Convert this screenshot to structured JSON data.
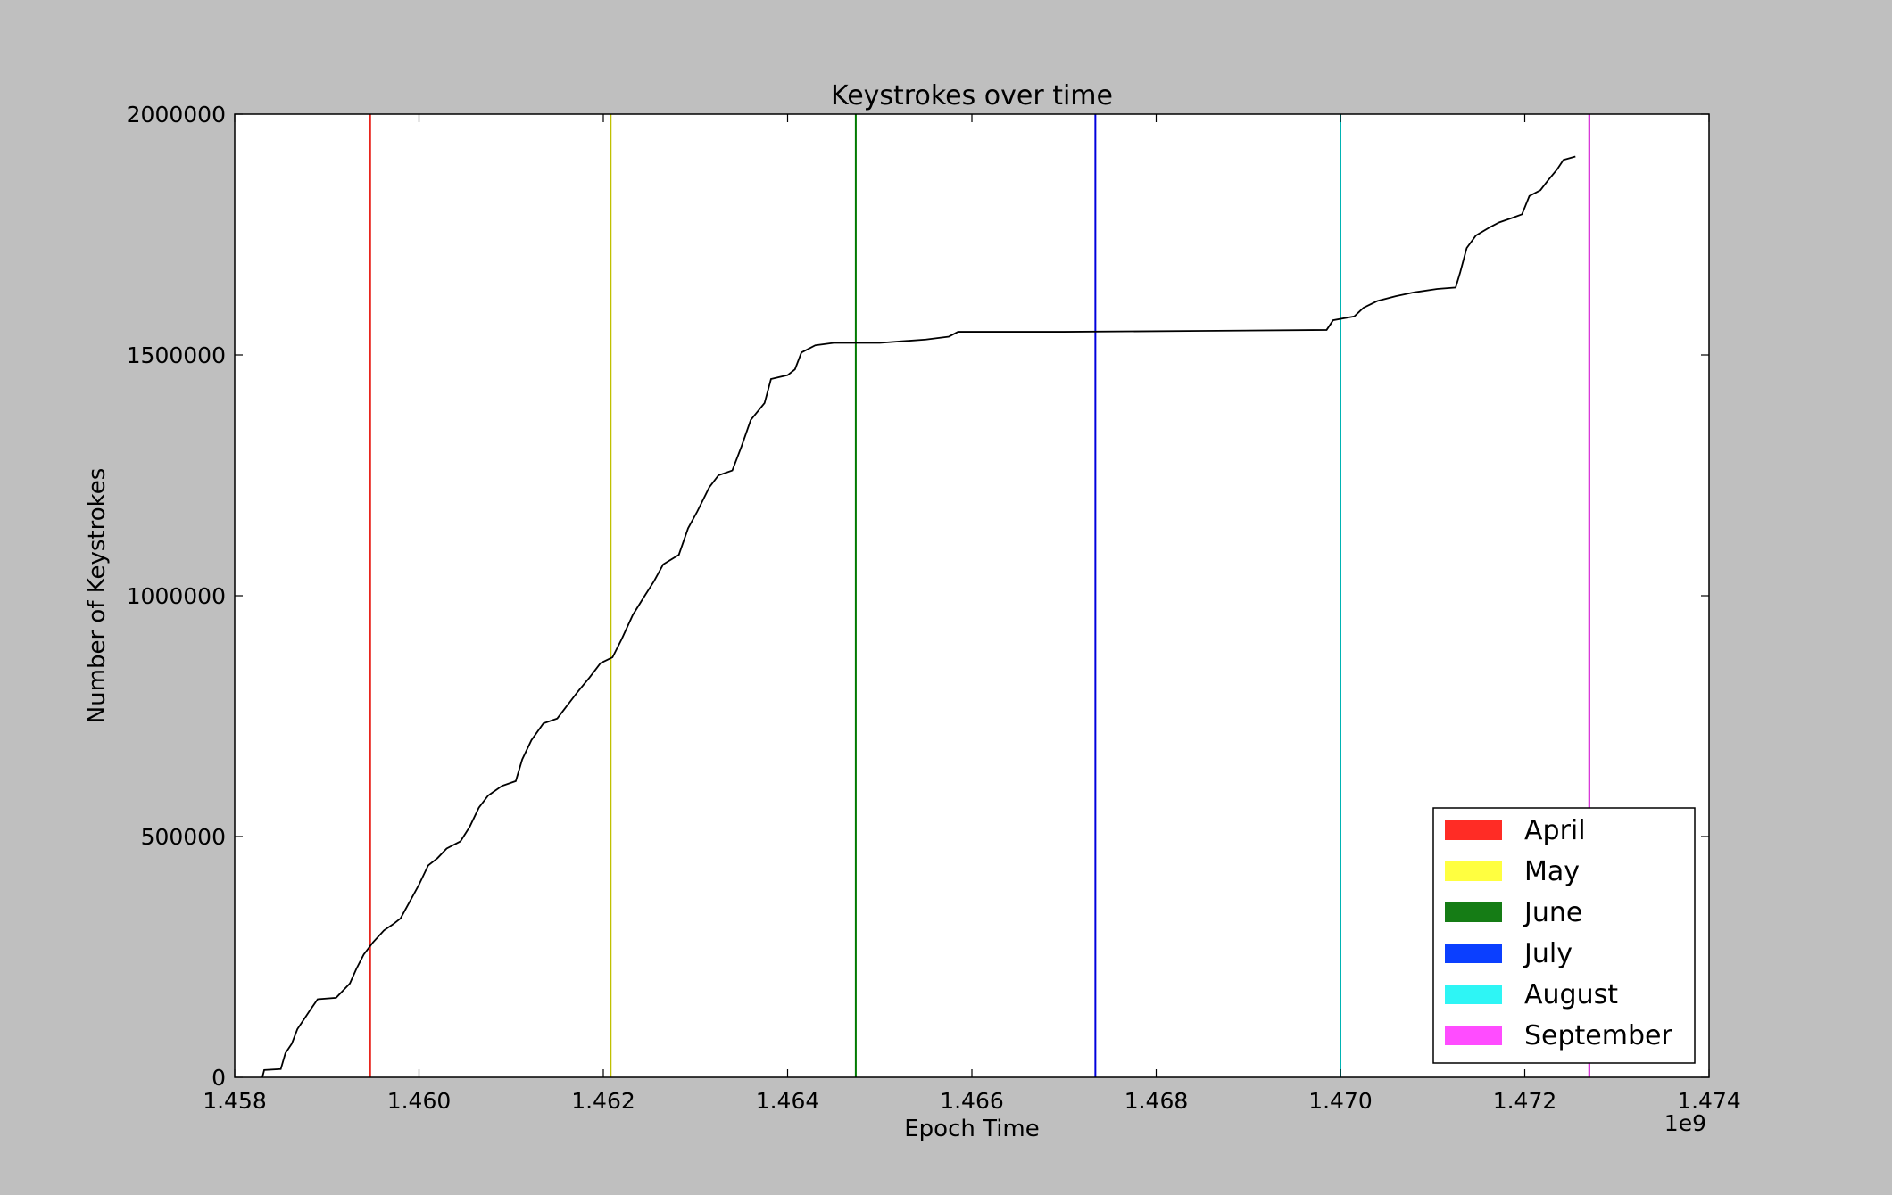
{
  "chart_data": {
    "type": "line",
    "title": "Keystrokes over time",
    "xlabel": "Epoch Time",
    "ylabel": "Number of Keystrokes",
    "x_offset_label": "1e9",
    "xlim": [
      1.458,
      1.474
    ],
    "ylim": [
      0,
      2000000
    ],
    "x_ticks": [
      1.458,
      1.46,
      1.462,
      1.464,
      1.466,
      1.468,
      1.47,
      1.472,
      1.474
    ],
    "x_tick_labels": [
      "1.458",
      "1.460",
      "1.462",
      "1.464",
      "1.466",
      "1.468",
      "1.470",
      "1.472",
      "1.474"
    ],
    "y_ticks": [
      0,
      500000,
      1000000,
      1500000,
      2000000
    ],
    "y_tick_labels": [
      "0",
      "500000",
      "1000000",
      "1500000",
      "2000000"
    ],
    "grid": false,
    "legend_position": "bottom-right",
    "series": [
      {
        "color": "#000000",
        "points": [
          [
            1.4583,
            0
          ],
          [
            1.45832,
            15000
          ],
          [
            1.4585,
            17000
          ],
          [
            1.45855,
            50000
          ],
          [
            1.45862,
            70000
          ],
          [
            1.45868,
            100000
          ],
          [
            1.45875,
            120000
          ],
          [
            1.45882,
            140000
          ],
          [
            1.4589,
            162000
          ],
          [
            1.4591,
            165000
          ],
          [
            1.45925,
            195000
          ],
          [
            1.45932,
            225000
          ],
          [
            1.4594,
            255000
          ],
          [
            1.4595,
            280000
          ],
          [
            1.45962,
            305000
          ],
          [
            1.45972,
            318000
          ],
          [
            1.4598,
            330000
          ],
          [
            1.4599,
            365000
          ],
          [
            1.46,
            400000
          ],
          [
            1.4601,
            440000
          ],
          [
            1.4602,
            455000
          ],
          [
            1.4603,
            475000
          ],
          [
            1.46045,
            490000
          ],
          [
            1.46055,
            520000
          ],
          [
            1.46065,
            560000
          ],
          [
            1.46075,
            585000
          ],
          [
            1.4609,
            605000
          ],
          [
            1.46105,
            615000
          ],
          [
            1.46112,
            660000
          ],
          [
            1.46122,
            700000
          ],
          [
            1.46135,
            735000
          ],
          [
            1.4615,
            745000
          ],
          [
            1.4616,
            770000
          ],
          [
            1.46172,
            800000
          ],
          [
            1.46185,
            830000
          ],
          [
            1.46197,
            860000
          ],
          [
            1.4621,
            872000
          ],
          [
            1.4622,
            910000
          ],
          [
            1.46232,
            960000
          ],
          [
            1.46245,
            1000000
          ],
          [
            1.46255,
            1030000
          ],
          [
            1.46265,
            1065000
          ],
          [
            1.46282,
            1085000
          ],
          [
            1.46292,
            1140000
          ],
          [
            1.46302,
            1175000
          ],
          [
            1.46315,
            1225000
          ],
          [
            1.46325,
            1250000
          ],
          [
            1.4634,
            1260000
          ],
          [
            1.4635,
            1310000
          ],
          [
            1.4636,
            1365000
          ],
          [
            1.46375,
            1400000
          ],
          [
            1.46382,
            1450000
          ],
          [
            1.464,
            1458000
          ],
          [
            1.46408,
            1470000
          ],
          [
            1.46415,
            1505000
          ],
          [
            1.4643,
            1520000
          ],
          [
            1.4645,
            1525000
          ],
          [
            1.465,
            1525000
          ],
          [
            1.4655,
            1532000
          ],
          [
            1.46575,
            1538000
          ],
          [
            1.46585,
            1548000
          ],
          [
            1.467,
            1548000
          ],
          [
            1.4685,
            1550000
          ],
          [
            1.46985,
            1552000
          ],
          [
            1.46992,
            1572000
          ],
          [
            1.47015,
            1580000
          ],
          [
            1.47025,
            1598000
          ],
          [
            1.4704,
            1612000
          ],
          [
            1.4706,
            1622000
          ],
          [
            1.4708,
            1630000
          ],
          [
            1.47105,
            1637000
          ],
          [
            1.47125,
            1640000
          ],
          [
            1.4713,
            1672000
          ],
          [
            1.47137,
            1722000
          ],
          [
            1.47147,
            1748000
          ],
          [
            1.47162,
            1765000
          ],
          [
            1.47172,
            1775000
          ],
          [
            1.47187,
            1785000
          ],
          [
            1.47197,
            1792000
          ],
          [
            1.47205,
            1830000
          ],
          [
            1.47217,
            1842000
          ],
          [
            1.47225,
            1862000
          ],
          [
            1.47235,
            1885000
          ],
          [
            1.47242,
            1905000
          ],
          [
            1.47255,
            1912000
          ]
        ]
      }
    ],
    "month_markers": [
      {
        "name": "April",
        "x": 1.45947,
        "line_color": "#e8241c",
        "patch_color": "#ff2c25"
      },
      {
        "name": "May",
        "x": 1.46208,
        "line_color": "#c0c000",
        "patch_color": "#ffff40"
      },
      {
        "name": "June",
        "x": 1.46474,
        "line_color": "#007a00",
        "patch_color": "#157c15"
      },
      {
        "name": "July",
        "x": 1.46734,
        "line_color": "#0000dd",
        "patch_color": "#0b3fff"
      },
      {
        "name": "August",
        "x": 1.47,
        "line_color": "#00b3b3",
        "patch_color": "#2ef5f5"
      },
      {
        "name": "September",
        "x": 1.4727,
        "line_color": "#cc00cc",
        "patch_color": "#ff4cff"
      }
    ]
  }
}
